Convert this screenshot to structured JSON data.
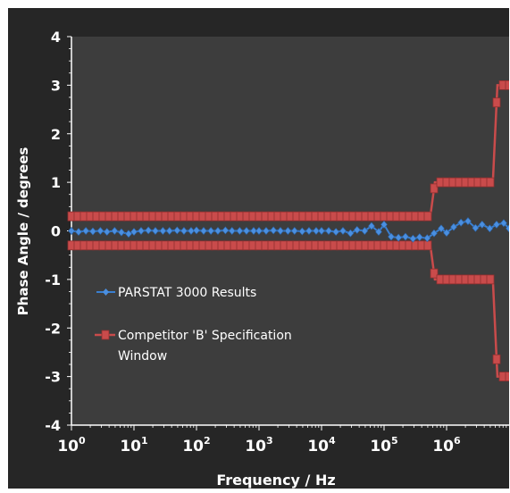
{
  "chart_data": {
    "type": "line",
    "xlabel": "Frequency / Hz",
    "ylabel": "Phase Angle / degrees",
    "x_scale": "log",
    "xlim": [
      1,
      10000000
    ],
    "ylim": [
      -4,
      4
    ],
    "x_ticks": [
      {
        "value": 1,
        "base": "10",
        "exp": "0"
      },
      {
        "value": 10,
        "base": "10",
        "exp": "1"
      },
      {
        "value": 100,
        "base": "10",
        "exp": "2"
      },
      {
        "value": 1000,
        "base": "10",
        "exp": "3"
      },
      {
        "value": 10000,
        "base": "10",
        "exp": "4"
      },
      {
        "value": 100000,
        "base": "10",
        "exp": "5"
      },
      {
        "value": 1000000,
        "base": "10",
        "exp": "6"
      }
    ],
    "y_ticks": [
      "4",
      "3",
      "2",
      "1",
      "0",
      "-1",
      "-2",
      "-3",
      "-4"
    ],
    "grid": false,
    "legend_position": "lower-left",
    "colors": {
      "plot_bg": "#3d3d3d",
      "frame_bg": "#262626",
      "series1": "#3a7fd0",
      "series2": "#c94b4b",
      "text": "#ffffff"
    },
    "series": [
      {
        "name": "PARSTAT 3000 Results",
        "marker": "diamond",
        "points": [
          [
            1,
            0.0
          ],
          [
            1.3,
            -0.02
          ],
          [
            1.7,
            0.0
          ],
          [
            2.2,
            -0.01
          ],
          [
            2.9,
            0.0
          ],
          [
            3.7,
            -0.02
          ],
          [
            4.9,
            0.0
          ],
          [
            6.3,
            -0.03
          ],
          [
            8.2,
            -0.06
          ],
          [
            10,
            -0.02
          ],
          [
            13,
            0.0
          ],
          [
            17,
            0.01
          ],
          [
            22,
            0.0
          ],
          [
            29,
            0.0
          ],
          [
            37,
            0.0
          ],
          [
            49,
            0.01
          ],
          [
            63,
            0.0
          ],
          [
            82,
            0.0
          ],
          [
            100,
            0.01
          ],
          [
            130,
            0.0
          ],
          [
            170,
            0.0
          ],
          [
            220,
            0.0
          ],
          [
            290,
            0.01
          ],
          [
            370,
            0.0
          ],
          [
            490,
            0.0
          ],
          [
            630,
            0.0
          ],
          [
            820,
            0.0
          ],
          [
            1000,
            0.0
          ],
          [
            1300,
            0.0
          ],
          [
            1700,
            0.01
          ],
          [
            2200,
            0.0
          ],
          [
            2900,
            0.0
          ],
          [
            3700,
            0.0
          ],
          [
            4900,
            -0.01
          ],
          [
            6300,
            0.0
          ],
          [
            8200,
            0.0
          ],
          [
            10000,
            0.0
          ],
          [
            13000,
            0.0
          ],
          [
            17000,
            -0.02
          ],
          [
            22000,
            0.0
          ],
          [
            29000,
            -0.05
          ],
          [
            37000,
            0.02
          ],
          [
            49000,
            0.0
          ],
          [
            63000,
            0.1
          ],
          [
            82000,
            -0.02
          ],
          [
            100000,
            0.13
          ],
          [
            130000,
            -0.12
          ],
          [
            170000,
            -0.14
          ],
          [
            220000,
            -0.12
          ],
          [
            290000,
            -0.16
          ],
          [
            370000,
            -0.13
          ],
          [
            490000,
            -0.15
          ],
          [
            630000,
            -0.05
          ],
          [
            820000,
            0.05
          ],
          [
            1000000,
            -0.04
          ],
          [
            1300000,
            0.08
          ],
          [
            1700000,
            0.17
          ],
          [
            2200000,
            0.2
          ],
          [
            2900000,
            0.06
          ],
          [
            3700000,
            0.13
          ],
          [
            4900000,
            0.05
          ],
          [
            6300000,
            0.13
          ],
          [
            8200000,
            0.16
          ],
          [
            10000000,
            0.05
          ]
        ]
      },
      {
        "name": "Competitor 'B' Specification Window",
        "marker": "square",
        "upper": [
          [
            1,
            0.3
          ],
          [
            550000,
            0.3
          ],
          [
            650000,
            1.0
          ],
          [
            5500000,
            1.0
          ],
          [
            6500000,
            3.0
          ],
          [
            10000000,
            3.0
          ]
        ],
        "lower": [
          [
            1,
            -0.3
          ],
          [
            550000,
            -0.3
          ],
          [
            650000,
            -1.0
          ],
          [
            5500000,
            -1.0
          ],
          [
            6500000,
            -3.0
          ],
          [
            10000000,
            -3.0
          ]
        ]
      }
    ]
  }
}
